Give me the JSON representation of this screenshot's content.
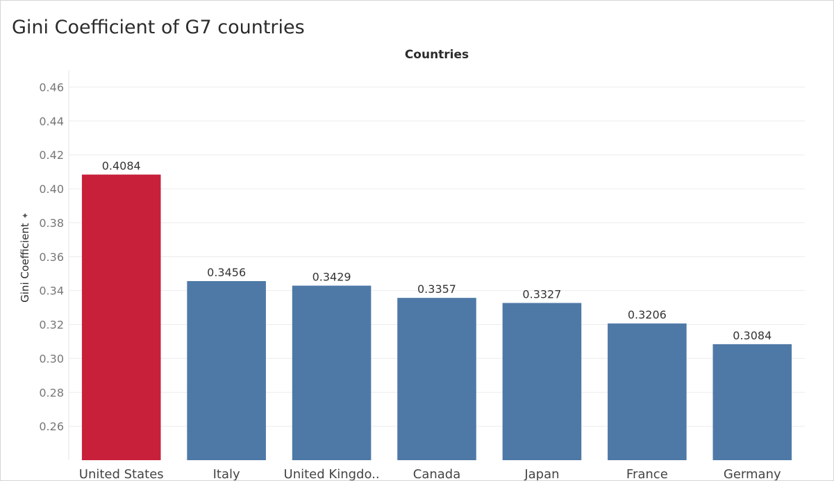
{
  "title": "Gini Coefficient of G7 countries",
  "chart_data": {
    "type": "bar",
    "title": "Gini Coefficient of G7 countries",
    "xlabel": "Countries",
    "ylabel": "Gini Coefficient",
    "ylabel_icon": "pin-icon",
    "categories": [
      "United States",
      "Italy",
      "United Kingdo..",
      "Canada",
      "Japan",
      "France",
      "Germany"
    ],
    "values": [
      0.4084,
      0.3456,
      0.3429,
      0.3357,
      0.3327,
      0.3206,
      0.3084
    ],
    "data_labels": [
      "0.4084",
      "0.3456",
      "0.3429",
      "0.3357",
      "0.3327",
      "0.3206",
      "0.3084"
    ],
    "ylim": [
      0.24,
      0.47
    ],
    "yticks": [
      0.26,
      0.28,
      0.3,
      0.32,
      0.34,
      0.36,
      0.38,
      0.4,
      0.42,
      0.44,
      0.46
    ],
    "ytick_labels": [
      "0.26",
      "0.28",
      "0.30",
      "0.32",
      "0.34",
      "0.36",
      "0.38",
      "0.40",
      "0.42",
      "0.44",
      "0.46"
    ],
    "grid": true,
    "colors": {
      "highlight": "#c8203b",
      "default": "#4e79a7",
      "grid": "#ececec",
      "tick_label": "#777777",
      "data_label": "#333333",
      "category_label": "#444444"
    },
    "bar_colors": [
      "highlight",
      "default",
      "default",
      "default",
      "default",
      "default",
      "default"
    ]
  }
}
